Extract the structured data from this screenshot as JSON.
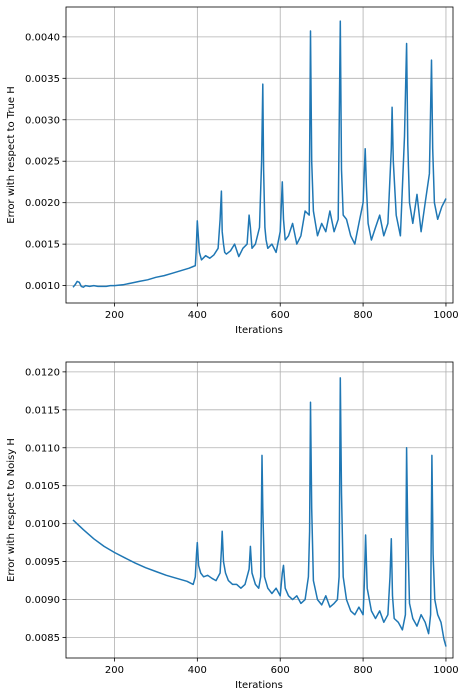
{
  "colors": {
    "series": "#1f77b4",
    "grid": "#b0b0b0",
    "axes": "#000000",
    "background": "#ffffff"
  },
  "chart_data": [
    {
      "type": "line",
      "xlabel": "Iterations",
      "ylabel": "Error with respect to True H",
      "xlim": [
        83,
        1017
      ],
      "ylim": [
        0.00079,
        0.00436
      ],
      "xticks": [
        200,
        400,
        600,
        800,
        1000
      ],
      "yticks": [
        0.001,
        0.0015,
        0.002,
        0.0025,
        0.003,
        0.0035,
        0.004
      ],
      "ytick_labels": [
        "0.0010",
        "0.0015",
        "0.0020",
        "0.0025",
        "0.0030",
        "0.0035",
        "0.0040"
      ],
      "grid": true,
      "series": [
        {
          "x": [
            100,
            105,
            110,
            115,
            120,
            125,
            130,
            140,
            150,
            160,
            170,
            180,
            190,
            200,
            220,
            240,
            260,
            280,
            300,
            320,
            340,
            360,
            380,
            390,
            395,
            397,
            400,
            405,
            410,
            420,
            430,
            440,
            450,
            455,
            458,
            460,
            463,
            466,
            470,
            480,
            490,
            500,
            510,
            520,
            525,
            528,
            532,
            540,
            550,
            555,
            558,
            560,
            563,
            566,
            570,
            580,
            590,
            600,
            605,
            608,
            612,
            620,
            630,
            640,
            650,
            660,
            670,
            673,
            676,
            680,
            690,
            700,
            710,
            720,
            730,
            740,
            745,
            748,
            752,
            760,
            770,
            780,
            790,
            800,
            805,
            808,
            812,
            820,
            830,
            840,
            850,
            860,
            868,
            870,
            873,
            880,
            890,
            900,
            905,
            908,
            912,
            920,
            930,
            940,
            950,
            960,
            965,
            968,
            972,
            980,
            990,
            1000
          ],
          "y": [
            0.00098,
            0.00101,
            0.00105,
            0.00104,
            0.00099,
            0.00098,
            0.001,
            0.00099,
            0.001,
            0.00099,
            0.00099,
            0.00099,
            0.001,
            0.001,
            0.00101,
            0.00103,
            0.00105,
            0.00107,
            0.0011,
            0.00112,
            0.00115,
            0.00118,
            0.00121,
            0.00123,
            0.00124,
            0.0014,
            0.00178,
            0.0014,
            0.00131,
            0.00136,
            0.00133,
            0.00137,
            0.00145,
            0.0018,
            0.00214,
            0.00165,
            0.0015,
            0.0014,
            0.00138,
            0.00142,
            0.0015,
            0.00135,
            0.00145,
            0.0015,
            0.00185,
            0.0017,
            0.00145,
            0.0015,
            0.0017,
            0.0025,
            0.00343,
            0.0024,
            0.0017,
            0.00155,
            0.00145,
            0.0015,
            0.0014,
            0.00165,
            0.00225,
            0.0018,
            0.00155,
            0.0016,
            0.00175,
            0.0015,
            0.0016,
            0.0019,
            0.00185,
            0.00407,
            0.0025,
            0.0019,
            0.0016,
            0.00175,
            0.00165,
            0.0019,
            0.00165,
            0.0018,
            0.00419,
            0.0024,
            0.00185,
            0.0018,
            0.0016,
            0.0015,
            0.00175,
            0.002,
            0.00265,
            0.0022,
            0.00175,
            0.00155,
            0.0017,
            0.00185,
            0.0016,
            0.00175,
            0.00265,
            0.00315,
            0.0025,
            0.00185,
            0.0016,
            0.0028,
            0.00392,
            0.0027,
            0.002,
            0.00175,
            0.0021,
            0.00165,
            0.002,
            0.00235,
            0.00372,
            0.00265,
            0.002,
            0.0018,
            0.00195,
            0.00205
          ]
        }
      ]
    },
    {
      "type": "line",
      "xlabel": "Iterations",
      "ylabel": "Error with respect to Noisy H",
      "xlim": [
        83,
        1017
      ],
      "ylim": [
        0.00823,
        0.01213
      ],
      "xticks": [
        200,
        400,
        600,
        800,
        1000
      ],
      "yticks": [
        0.0085,
        0.009,
        0.0095,
        0.01,
        0.0105,
        0.011,
        0.0115,
        0.012
      ],
      "ytick_labels": [
        "0.0085",
        "0.0090",
        "0.0095",
        "0.0100",
        "0.0105",
        "0.0110",
        "0.0115",
        "0.0120"
      ],
      "grid": true,
      "series": [
        {
          "x": [
            100,
            125,
            150,
            175,
            200,
            225,
            250,
            275,
            300,
            325,
            350,
            375,
            390,
            395,
            398,
            400,
            403,
            408,
            415,
            425,
            435,
            445,
            455,
            458,
            460,
            463,
            468,
            475,
            485,
            495,
            505,
            515,
            525,
            528,
            532,
            540,
            548,
            553,
            556,
            558,
            562,
            570,
            580,
            590,
            600,
            605,
            608,
            612,
            620,
            630,
            640,
            650,
            660,
            668,
            671,
            673,
            676,
            680,
            690,
            700,
            710,
            720,
            730,
            738,
            742,
            745,
            748,
            752,
            760,
            770,
            780,
            790,
            800,
            803,
            806,
            810,
            820,
            830,
            840,
            850,
            860,
            865,
            868,
            871,
            875,
            885,
            895,
            902,
            905,
            908,
            912,
            920,
            930,
            940,
            950,
            958,
            963,
            966,
            969,
            973,
            980,
            988,
            995,
            1000
          ],
          "y": [
            0.01005,
            0.00992,
            0.0098,
            0.0097,
            0.00962,
            0.00955,
            0.00948,
            0.00942,
            0.00937,
            0.00932,
            0.00928,
            0.00924,
            0.0092,
            0.0093,
            0.0096,
            0.00975,
            0.00945,
            0.00935,
            0.0093,
            0.00932,
            0.00928,
            0.00925,
            0.00935,
            0.00965,
            0.0099,
            0.0095,
            0.00935,
            0.00925,
            0.0092,
            0.0092,
            0.00915,
            0.0092,
            0.0094,
            0.0097,
            0.00935,
            0.0092,
            0.00915,
            0.0093,
            0.0109,
            0.0102,
            0.0093,
            0.00915,
            0.00908,
            0.00915,
            0.00905,
            0.00935,
            0.00945,
            0.00915,
            0.00905,
            0.009,
            0.00905,
            0.00895,
            0.009,
            0.0093,
            0.0099,
            0.0116,
            0.0102,
            0.00925,
            0.009,
            0.00893,
            0.00905,
            0.0089,
            0.00895,
            0.009,
            0.0093,
            0.01192,
            0.0104,
            0.0093,
            0.009,
            0.00885,
            0.0088,
            0.0089,
            0.0088,
            0.0092,
            0.00985,
            0.00915,
            0.00885,
            0.00875,
            0.00885,
            0.0087,
            0.0088,
            0.0093,
            0.0098,
            0.00905,
            0.00875,
            0.0087,
            0.0086,
            0.0088,
            0.011,
            0.00985,
            0.00895,
            0.00875,
            0.00865,
            0.0088,
            0.0087,
            0.00855,
            0.0088,
            0.0109,
            0.0096,
            0.009,
            0.0088,
            0.0087,
            0.00848,
            0.00838
          ]
        }
      ]
    }
  ]
}
